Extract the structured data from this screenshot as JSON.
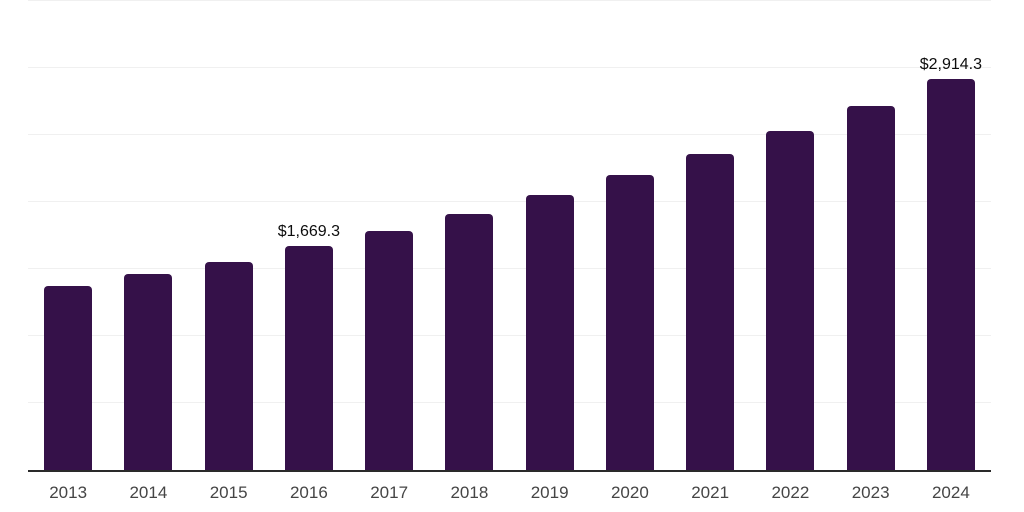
{
  "chart_data": {
    "type": "bar",
    "title": "",
    "xlabel": "",
    "ylabel": "",
    "categories": [
      "2013",
      "2014",
      "2015",
      "2016",
      "2017",
      "2018",
      "2019",
      "2020",
      "2021",
      "2022",
      "2023",
      "2024"
    ],
    "values": [
      1371,
      1461,
      1554,
      1669.3,
      1781,
      1908,
      2049,
      2198,
      2355,
      2530,
      2720,
      2914.3
    ],
    "data_labels": {
      "2016": "$1,669.3",
      "2024": "$2,914.3"
    },
    "ylim": [
      0,
      3500
    ],
    "grid_step": 500,
    "grid": "on",
    "legend": "none",
    "y_axis_tick_labels": "none",
    "value_prefix": "$"
  },
  "colors": {
    "bar": "#351149",
    "gridline": "#f0f0f0",
    "axis_line": "#2a2a2a",
    "tick_label": "#454545",
    "data_label": "#0d0d0d",
    "background": "#ffffff"
  }
}
